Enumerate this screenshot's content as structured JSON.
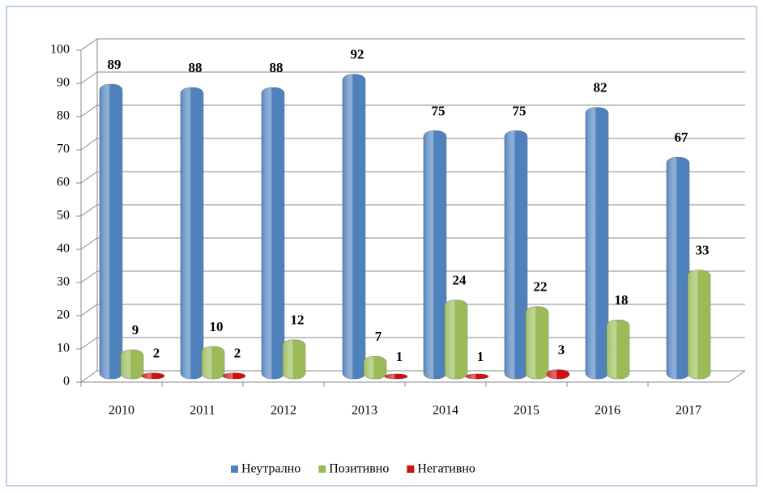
{
  "chart_data": {
    "type": "bar",
    "categories": [
      "2010",
      "2011",
      "2012",
      "2013",
      "2014",
      "2015",
      "2016",
      "2017"
    ],
    "series": [
      {
        "name": "Неутрално",
        "color": "#4f81bd",
        "values": [
          89,
          88,
          88,
          92,
          75,
          75,
          82,
          67
        ]
      },
      {
        "name": "Позитивно",
        "color": "#9bbb59",
        "values": [
          9,
          10,
          12,
          7,
          24,
          22,
          18,
          33
        ]
      },
      {
        "name": "Негативно",
        "color": "#d01010",
        "values": [
          2,
          2,
          null,
          1,
          1,
          3,
          null,
          null
        ]
      }
    ],
    "ylim": [
      0,
      100
    ],
    "yticks": [
      0,
      10,
      20,
      30,
      40,
      50,
      60,
      70,
      80,
      90,
      100
    ],
    "grid": true,
    "legend": "bottom"
  }
}
